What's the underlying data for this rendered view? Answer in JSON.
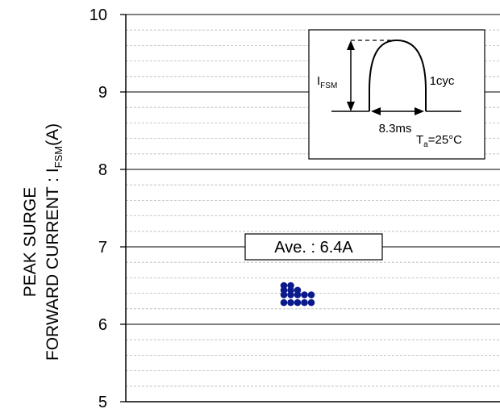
{
  "chart_data": {
    "type": "scatter",
    "ylabel_line1": "PEAK SURGE",
    "ylabel_line2_prefix": "FORWARD CURRENT : I",
    "ylabel_line2_sub": "FSM",
    "ylabel_line2_suffix": "(A)",
    "ylim": [
      5,
      10
    ],
    "yticks": [
      "5",
      "6",
      "7",
      "8",
      "9",
      "10"
    ],
    "major_grid": true,
    "minor_grid": true,
    "minor_step": 0.2,
    "annotation": "Ave. : 6.4A",
    "points": [
      {
        "x": 0,
        "y": 6.5
      },
      {
        "x": 1,
        "y": 6.5
      },
      {
        "x": 0,
        "y": 6.44
      },
      {
        "x": 1,
        "y": 6.44
      },
      {
        "x": 2,
        "y": 6.44
      },
      {
        "x": 0,
        "y": 6.38
      },
      {
        "x": 1,
        "y": 6.38
      },
      {
        "x": 2,
        "y": 6.38
      },
      {
        "x": 3,
        "y": 6.38
      },
      {
        "x": 4,
        "y": 6.38
      },
      {
        "x": 0,
        "y": 6.28
      },
      {
        "x": 1,
        "y": 6.28
      },
      {
        "x": 2,
        "y": 6.28
      },
      {
        "x": 3,
        "y": 6.28
      },
      {
        "x": 4,
        "y": 6.28
      }
    ],
    "point_color": "#0a1a8c",
    "inset": {
      "ifsm_main": "I",
      "ifsm_sub": "FSM",
      "cycles": "1cyc",
      "duration": "8.3ms",
      "ta_main": "T",
      "ta_sub": "a",
      "ta_value": "=25°C"
    }
  }
}
